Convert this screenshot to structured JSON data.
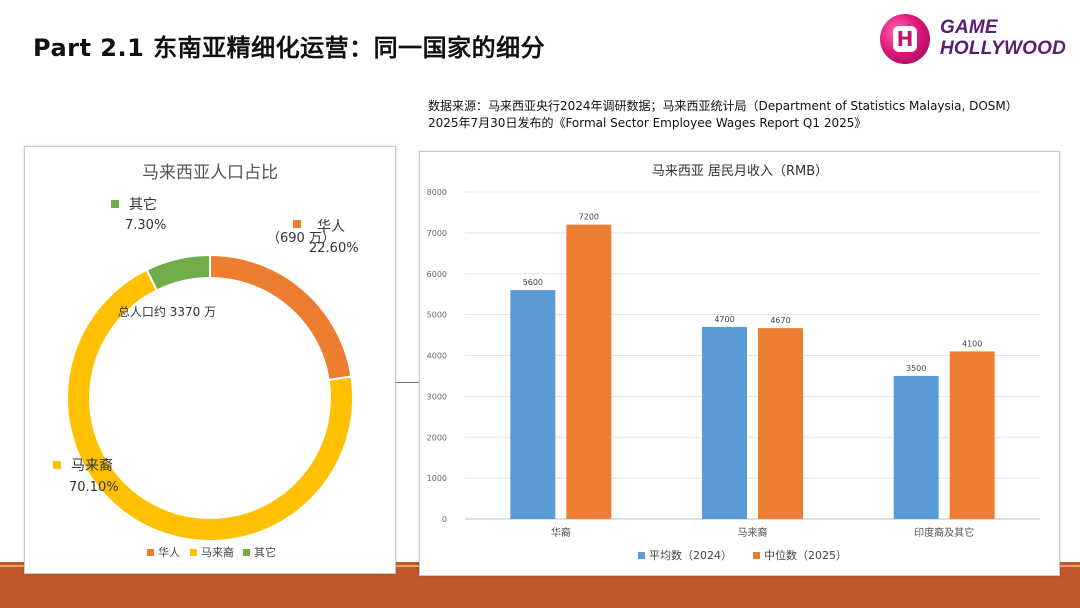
{
  "slide": {
    "title": "Part 2.1 东南亚精细化运营：同一国家的细分",
    "logo_line1": "GAME",
    "logo_line2": "HOLLYWOOD",
    "logo_letter": "H",
    "source_line1": "数据来源：马来西亚央行2024年调研数据；马来西亚统计局（Department of Statistics Malaysia, DOSM）",
    "source_line2": "2025年7月30日发布的《Formal Sector Employee Wages Report Q1 2025》"
  },
  "colors": {
    "blue": "#5b9bd5",
    "orange": "#ed7d31",
    "yellow": "#ffc000",
    "green": "#70ad47",
    "band": "#c0582a"
  },
  "chart_data": [
    {
      "type": "pie",
      "title": "马来西亚人口占比",
      "center_label": "总人口约 3370 万",
      "slices": [
        {
          "name": "华人",
          "value": 22.6,
          "label_pct": "22.60%",
          "note": "（690 万）",
          "color": "#ed7d31"
        },
        {
          "name": "马来裔",
          "value": 70.1,
          "label_pct": "70.10%",
          "color": "#ffc000"
        },
        {
          "name": "其它",
          "value": 7.3,
          "label_pct": "7.30%",
          "color": "#70ad47"
        }
      ],
      "legend": [
        "华人",
        "马来裔",
        "其它"
      ],
      "legend_position": "bottom"
    },
    {
      "type": "bar",
      "title": "马来西亚 居民月收入（RMB）",
      "categories": [
        "华裔",
        "马来裔",
        "印度裔及其它"
      ],
      "series": [
        {
          "name": "平均数（2024）",
          "values": [
            5600,
            4700,
            3500
          ],
          "color": "#5b9bd5"
        },
        {
          "name": "中位数（2025）",
          "values": [
            7200,
            4670,
            4100
          ],
          "color": "#ed7d31"
        }
      ],
      "ylim": [
        0,
        8000
      ],
      "yticks": [
        0,
        1000,
        2000,
        3000,
        4000,
        5000,
        6000,
        7000,
        8000
      ],
      "grid": true,
      "legend_position": "bottom"
    }
  ]
}
